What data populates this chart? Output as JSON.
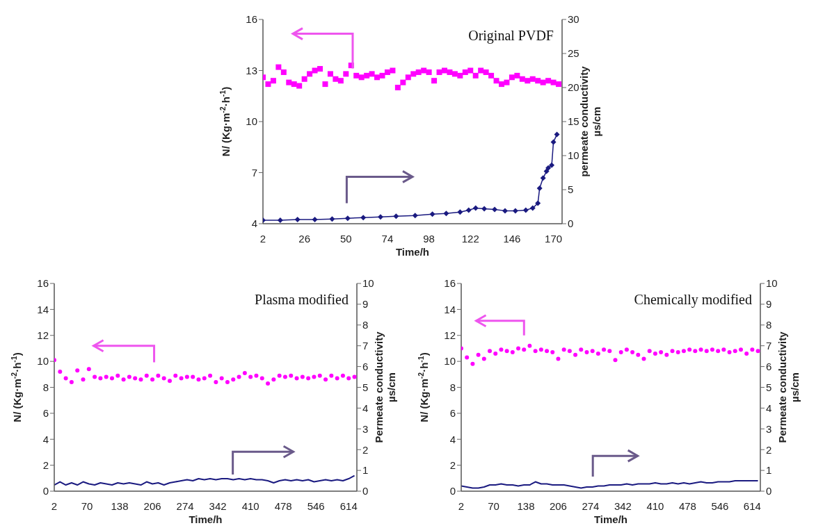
{
  "chart_data": [
    {
      "type": "scatter",
      "annotations": [
        "Original PVDF"
      ],
      "xlabel": "Time/h",
      "ylabel": "N/ (Kg·m$^{-2}$·h$^{-1}$)",
      "y2label": "permeate conductivity\nµs/cm",
      "xlim": [
        2,
        175
      ],
      "xticks": [
        2,
        26,
        50,
        74,
        98,
        122,
        146,
        170
      ],
      "ylim": [
        4,
        16
      ],
      "yticks": [
        4,
        7,
        10,
        13,
        16
      ],
      "y2lim": [
        0,
        30
      ],
      "y2ticks": [
        0,
        5,
        10,
        15,
        20,
        25,
        30
      ],
      "series": [
        {
          "color": "#ff00ff",
          "marker": "square",
          "x": [
            2,
            5,
            8,
            11,
            14,
            17,
            20,
            23,
            26,
            29,
            32,
            35,
            38,
            41,
            44,
            47,
            50,
            53,
            56,
            59,
            62,
            65,
            68,
            71,
            74,
            77,
            80,
            83,
            86,
            89,
            92,
            95,
            98,
            101,
            104,
            107,
            110,
            113,
            116,
            119,
            122,
            125,
            128,
            131,
            134,
            137,
            140,
            143,
            146,
            149,
            152,
            155,
            158,
            161,
            164,
            167,
            170,
            173
          ],
          "values": [
            12.6,
            12.2,
            12.4,
            13.2,
            12.9,
            12.3,
            12.2,
            12.1,
            12.5,
            12.8,
            13.0,
            13.1,
            12.2,
            12.8,
            12.5,
            12.4,
            12.8,
            13.3,
            12.7,
            12.6,
            12.7,
            12.8,
            12.6,
            12.7,
            12.9,
            13.0,
            12.0,
            12.3,
            12.6,
            12.8,
            12.9,
            13.0,
            12.9,
            12.4,
            12.9,
            13.0,
            12.9,
            12.8,
            12.7,
            12.9,
            13.0,
            12.7,
            13.0,
            12.9,
            12.7,
            12.4,
            12.2,
            12.3,
            12.6,
            12.7,
            12.5,
            12.4,
            12.5,
            12.4,
            12.3,
            12.4,
            12.3,
            12.2
          ]
        },
        {
          "type": "line",
          "axis": "y2",
          "color": "#1a1a80",
          "marker": "diamond",
          "x": [
            2,
            12,
            22,
            32,
            42,
            51,
            60,
            70,
            79,
            90,
            100,
            108,
            116,
            121,
            125,
            130,
            136,
            142,
            148,
            154,
            158,
            161,
            162,
            164,
            166,
            167,
            169,
            170,
            172
          ],
          "values": [
            0.5,
            0.5,
            0.6,
            0.6,
            0.7,
            0.8,
            0.9,
            1.0,
            1.1,
            1.2,
            1.4,
            1.5,
            1.7,
            2.0,
            2.3,
            2.2,
            2.1,
            1.9,
            1.9,
            2.0,
            2.3,
            3.0,
            5.2,
            6.7,
            7.7,
            8.2,
            8.6,
            12.0,
            13.1
          ]
        }
      ]
    },
    {
      "type": "scatter",
      "annotations": [
        "Plasma modified"
      ],
      "xlabel": "Time/h",
      "ylabel": "N/ (Kg·m$^{-2}$·h$^{-1}$)",
      "y2label": "Permeate conductivity\nµs/cm",
      "xlim": [
        2,
        631
      ],
      "xticks": [
        2,
        70,
        138,
        206,
        274,
        342,
        410,
        478,
        546,
        614
      ],
      "ylim": [
        0,
        16
      ],
      "yticks": [
        0,
        2,
        4,
        6,
        8,
        10,
        12,
        14,
        16
      ],
      "y2lim": [
        0,
        10
      ],
      "y2ticks": [
        0,
        1,
        2,
        3,
        4,
        5,
        6,
        7,
        8,
        9,
        10
      ],
      "x": [
        2,
        14,
        26,
        38,
        50,
        62,
        74,
        86,
        98,
        110,
        122,
        134,
        146,
        158,
        170,
        182,
        194,
        206,
        218,
        230,
        242,
        254,
        266,
        278,
        290,
        302,
        314,
        326,
        338,
        350,
        362,
        374,
        386,
        398,
        410,
        422,
        434,
        446,
        458,
        470,
        482,
        494,
        506,
        518,
        530,
        542,
        554,
        566,
        578,
        590,
        602,
        614,
        626
      ],
      "series": [
        {
          "color": "#ff00ff",
          "marker": "circle",
          "values": [
            10.1,
            9.2,
            8.7,
            8.4,
            9.3,
            8.6,
            9.4,
            8.8,
            8.7,
            8.8,
            8.7,
            8.9,
            8.6,
            8.8,
            8.7,
            8.6,
            8.9,
            8.6,
            8.9,
            8.7,
            8.5,
            8.9,
            8.7,
            8.8,
            8.8,
            8.6,
            8.7,
            8.9,
            8.4,
            8.7,
            8.4,
            8.6,
            8.8,
            9.1,
            8.8,
            8.9,
            8.7,
            8.3,
            8.6,
            8.9,
            8.8,
            8.9,
            8.7,
            8.8,
            8.7,
            8.8,
            8.9,
            8.6,
            8.9,
            8.7,
            8.9,
            8.7,
            8.8
          ]
        },
        {
          "type": "line",
          "axis": "y2",
          "color": "#1a1a80",
          "marker": "none",
          "values": [
            0.3,
            0.45,
            0.3,
            0.4,
            0.3,
            0.45,
            0.35,
            0.3,
            0.4,
            0.35,
            0.3,
            0.4,
            0.35,
            0.4,
            0.35,
            0.3,
            0.45,
            0.35,
            0.4,
            0.3,
            0.4,
            0.45,
            0.5,
            0.55,
            0.5,
            0.6,
            0.55,
            0.6,
            0.55,
            0.6,
            0.6,
            0.55,
            0.6,
            0.55,
            0.6,
            0.55,
            0.55,
            0.5,
            0.4,
            0.5,
            0.55,
            0.5,
            0.55,
            0.5,
            0.55,
            0.45,
            0.5,
            0.55,
            0.5,
            0.55,
            0.5,
            0.6,
            0.75
          ]
        }
      ]
    },
    {
      "type": "scatter",
      "annotations": [
        "Chemically modified"
      ],
      "xlabel": "Time/h",
      "ylabel": "N/ (Kg·m$^{-2}$·h$^{-1}$)",
      "y2label": "Permeate conductivity\nµs/cm",
      "xlim": [
        2,
        631
      ],
      "xticks": [
        2,
        70,
        138,
        206,
        274,
        342,
        410,
        478,
        546,
        614
      ],
      "ylim": [
        0,
        16
      ],
      "yticks": [
        0,
        2,
        4,
        6,
        8,
        10,
        12,
        14,
        16
      ],
      "y2lim": [
        0,
        10
      ],
      "y2ticks": [
        0,
        1,
        2,
        3,
        4,
        5,
        6,
        7,
        8,
        9,
        10
      ],
      "x": [
        2,
        14,
        26,
        38,
        50,
        62,
        74,
        86,
        98,
        110,
        122,
        134,
        146,
        158,
        170,
        182,
        194,
        206,
        218,
        230,
        242,
        254,
        266,
        278,
        290,
        302,
        314,
        326,
        338,
        350,
        362,
        374,
        386,
        398,
        410,
        422,
        434,
        446,
        458,
        470,
        482,
        494,
        506,
        518,
        530,
        542,
        554,
        566,
        578,
        590,
        602,
        614,
        626
      ],
      "series": [
        {
          "color": "#ff00ff",
          "marker": "circle",
          "values": [
            11.0,
            10.3,
            9.8,
            10.5,
            10.2,
            10.8,
            10.6,
            10.9,
            10.8,
            10.7,
            11.0,
            10.9,
            11.2,
            10.8,
            10.9,
            10.8,
            10.7,
            10.2,
            10.9,
            10.8,
            10.5,
            10.9,
            10.7,
            10.8,
            10.6,
            10.9,
            10.8,
            10.1,
            10.7,
            10.9,
            10.7,
            10.5,
            10.2,
            10.8,
            10.6,
            10.7,
            10.5,
            10.8,
            10.7,
            10.8,
            10.9,
            10.8,
            10.9,
            10.8,
            10.9,
            10.8,
            10.9,
            10.7,
            10.8,
            10.9,
            10.6,
            10.9,
            10.8
          ]
        },
        {
          "type": "line",
          "axis": "y2",
          "color": "#1a1a80",
          "marker": "none",
          "values": [
            0.25,
            0.2,
            0.15,
            0.15,
            0.2,
            0.3,
            0.3,
            0.35,
            0.3,
            0.3,
            0.25,
            0.3,
            0.3,
            0.45,
            0.35,
            0.35,
            0.3,
            0.3,
            0.3,
            0.25,
            0.2,
            0.15,
            0.2,
            0.2,
            0.25,
            0.25,
            0.3,
            0.3,
            0.3,
            0.35,
            0.3,
            0.35,
            0.35,
            0.35,
            0.4,
            0.35,
            0.35,
            0.4,
            0.35,
            0.4,
            0.35,
            0.4,
            0.45,
            0.4,
            0.4,
            0.45,
            0.45,
            0.45,
            0.5,
            0.5,
            0.5,
            0.5,
            0.5
          ]
        }
      ]
    }
  ]
}
